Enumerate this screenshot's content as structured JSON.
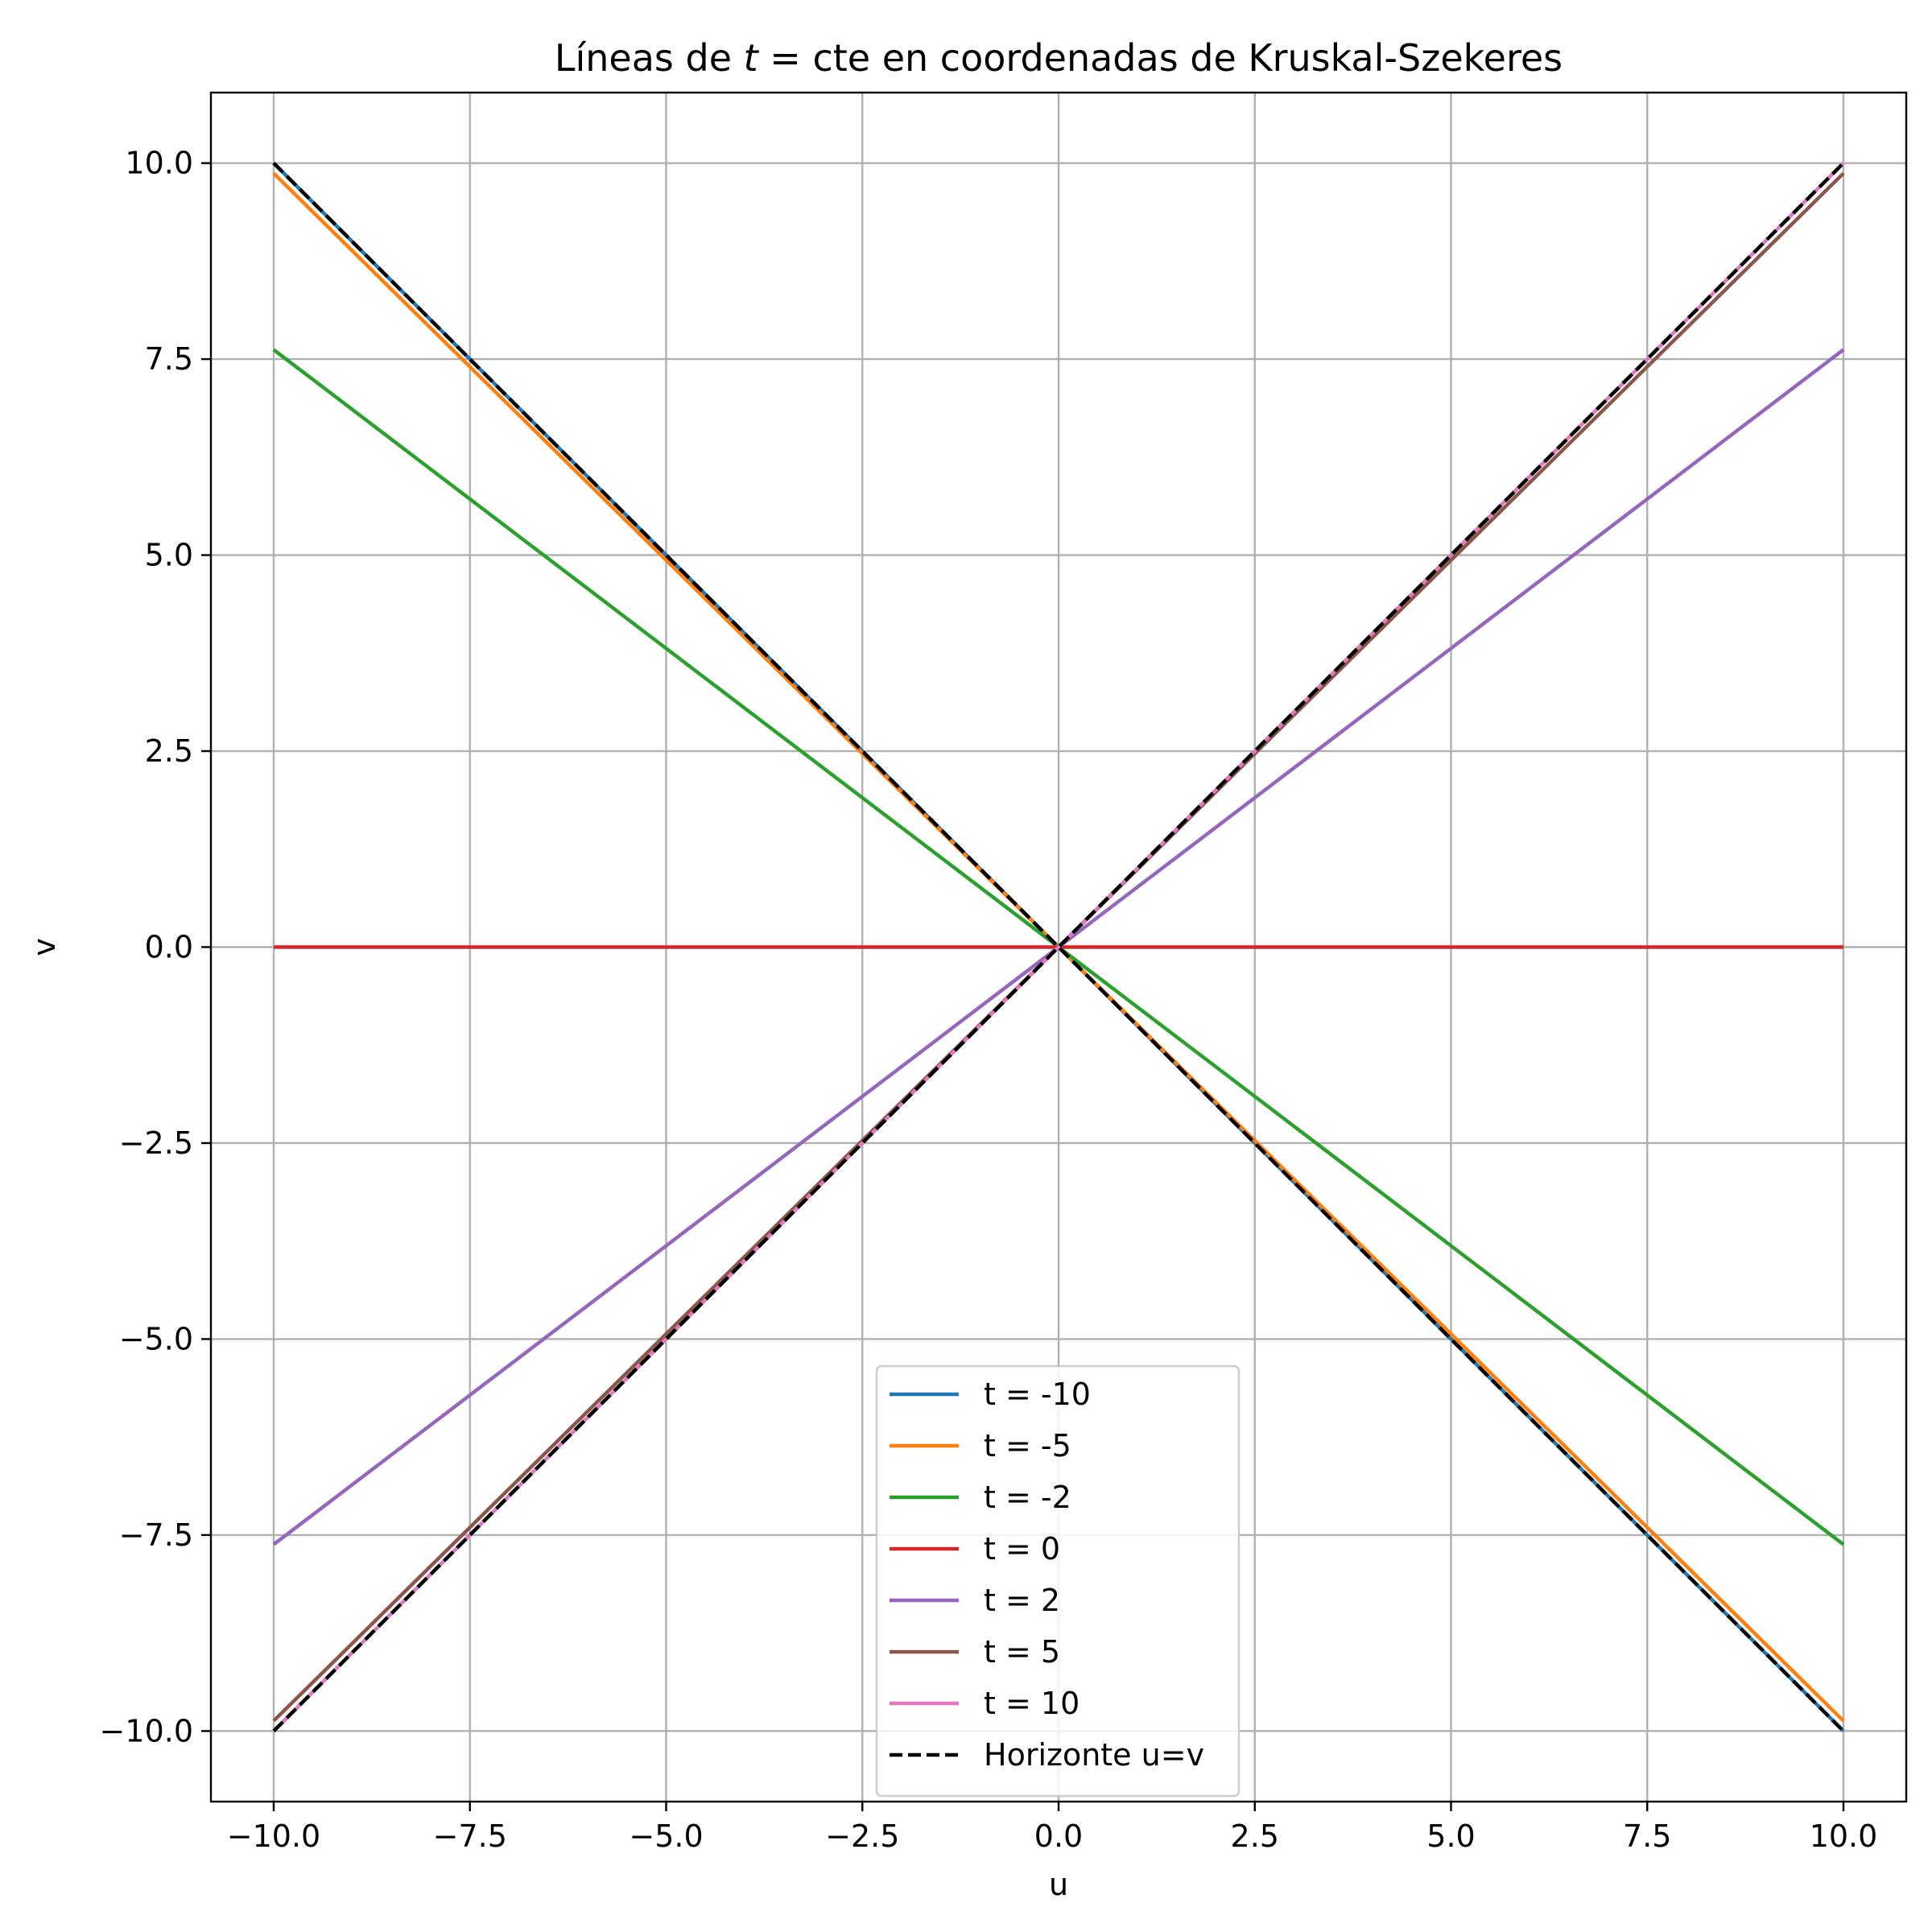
{
  "chart_data": {
    "type": "line",
    "title_prefix": "Líneas de ",
    "title_italic": "t",
    "title_suffix": " = cte en coordenadas de Kruskal-Szekeres",
    "xlabel": "u",
    "ylabel": "v",
    "xlim": [
      -10.8,
      10.8
    ],
    "ylim": [
      -10.9,
      10.9
    ],
    "grid": true,
    "legend_position": "lower center",
    "x_ticks": [
      -10.0,
      -7.5,
      -5.0,
      -2.5,
      0.0,
      2.5,
      5.0,
      7.5,
      10.0
    ],
    "y_ticks": [
      -10.0,
      -7.5,
      -5.0,
      -2.5,
      0.0,
      2.5,
      5.0,
      7.5,
      10.0
    ],
    "x_tick_labels": [
      "−10.0",
      "−7.5",
      "−5.0",
      "−2.5",
      "0.0",
      "2.5",
      "5.0",
      "7.5",
      "10.0"
    ],
    "y_tick_labels": [
      "−10.0",
      "−7.5",
      "−5.0",
      "−2.5",
      "0.0",
      "2.5",
      "5.0",
      "7.5",
      "10.0"
    ],
    "series": [
      {
        "name": "t = -10",
        "color": "#1f77b4",
        "style": "solid",
        "x": [
          -10,
          10
        ],
        "y": [
          10.0,
          -10.0
        ]
      },
      {
        "name": "t = -5",
        "color": "#ff7f0e",
        "style": "solid",
        "x": [
          -10,
          10
        ],
        "y": [
          9.87,
          -9.87
        ]
      },
      {
        "name": "t = -2",
        "color": "#2ca02c",
        "style": "solid",
        "x": [
          -10,
          10
        ],
        "y": [
          7.62,
          -7.62
        ]
      },
      {
        "name": "t = 0",
        "color": "#d62728",
        "style": "solid",
        "x": [
          -10,
          10
        ],
        "y": [
          0.0,
          0.0
        ]
      },
      {
        "name": "t = 2",
        "color": "#9467bd",
        "style": "solid",
        "x": [
          -10,
          10
        ],
        "y": [
          -7.62,
          7.62
        ]
      },
      {
        "name": "t = 5",
        "color": "#8c564b",
        "style": "solid",
        "x": [
          -10,
          10
        ],
        "y": [
          -9.87,
          9.87
        ]
      },
      {
        "name": "t = 10",
        "color": "#e377c2",
        "style": "solid",
        "x": [
          -10,
          10
        ],
        "y": [
          -10.0,
          10.0
        ]
      },
      {
        "name": "Horizonte u=v",
        "color": "#000000",
        "style": "dashed",
        "x": [
          -10,
          10
        ],
        "y": [
          -10.0,
          10.0
        ]
      },
      {
        "name": "",
        "color": "#000000",
        "style": "dashed",
        "x": [
          -10,
          10
        ],
        "y": [
          10.0,
          -10.0
        ]
      }
    ]
  }
}
